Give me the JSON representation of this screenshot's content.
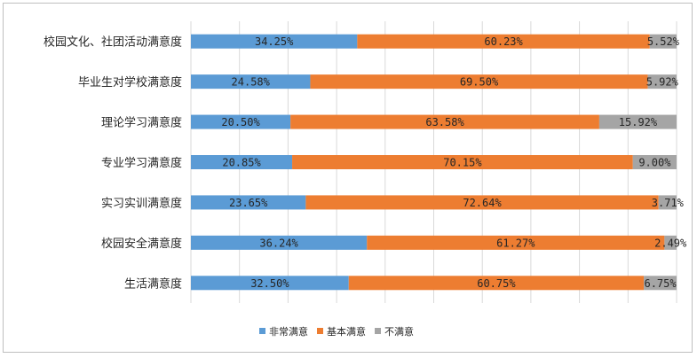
{
  "chart_data": {
    "type": "bar",
    "orientation": "horizontal",
    "stacked": "percent",
    "categories": [
      "校园文化、社团活动满意度",
      "毕业生对学校满意度",
      "理论学习满意度",
      "专业学习满意度",
      "实习实训满意度",
      "校园安全满意度",
      "生活满意度"
    ],
    "series": [
      {
        "name": "非常满意",
        "color": "#5b9bd5",
        "values": [
          34.25,
          24.58,
          20.5,
          20.85,
          23.65,
          36.24,
          32.5
        ],
        "labels": [
          "34.25%",
          "24.58%",
          "20.50%",
          "20.85%",
          "23.65%",
          "36.24%",
          "32.50%"
        ]
      },
      {
        "name": "基本满意",
        "color": "#ed7d31",
        "values": [
          60.23,
          69.5,
          63.58,
          70.15,
          72.64,
          61.27,
          60.75
        ],
        "labels": [
          "60.23%",
          "69.50%",
          "63.58%",
          "70.15%",
          "72.64%",
          "61.27%",
          "60.75%"
        ]
      },
      {
        "name": "不满意",
        "color": "#a5a5a5",
        "values": [
          5.52,
          5.92,
          15.92,
          9.0,
          3.71,
          2.49,
          6.75
        ],
        "labels": [
          "5.52%",
          "5.92%",
          "15.92%",
          "9.00%",
          "3.71%",
          "2.49%",
          "6.75%"
        ]
      }
    ],
    "xlim": [
      0,
      100
    ],
    "grid": true,
    "legend": "bottom"
  }
}
